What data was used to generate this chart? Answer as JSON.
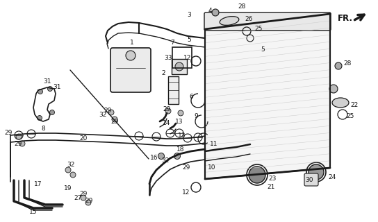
{
  "bg_color": "#ffffff",
  "fig_width": 5.44,
  "fig_height": 3.2,
  "dpi": 100,
  "fr_label": "FR.",
  "line_color": "#1a1a1a",
  "label_color": "#111111",
  "label_fontsize": 6.5
}
